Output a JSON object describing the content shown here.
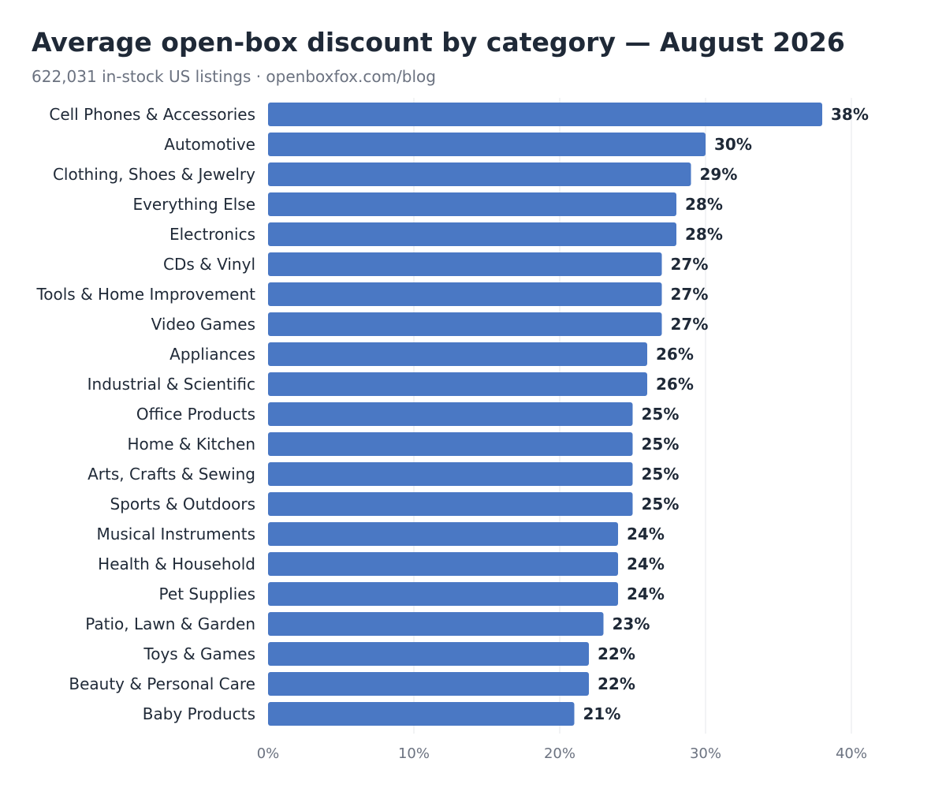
{
  "title": "Average open-box discount by category — August 2026",
  "subtitle": "622,031 in-stock US listings · openboxfox.com/blog",
  "colors": {
    "bar": "#4a78c4",
    "title": "#1f2937",
    "subtitle": "#6b7280",
    "category_label": "#1f2937",
    "value_label": "#1f2937",
    "tick_label": "#6b7280",
    "grid": "#e5e7eb"
  },
  "chart_data": {
    "type": "bar",
    "orientation": "horizontal",
    "title": "Average open-box discount by category — August 2026",
    "subtitle": "622,031 in-stock US listings · openboxfox.com/blog",
    "xlabel": "",
    "ylabel": "",
    "xlim": [
      0,
      40
    ],
    "xticks": [
      0,
      10,
      20,
      30,
      40
    ],
    "xtick_labels": [
      "0%",
      "10%",
      "20%",
      "30%",
      "40%"
    ],
    "grid": "vertical",
    "legend": "none",
    "categories": [
      "Cell Phones & Accessories",
      "Automotive",
      "Clothing, Shoes & Jewelry",
      "Everything Else",
      "Electronics",
      "CDs & Vinyl",
      "Tools & Home Improvement",
      "Video Games",
      "Appliances",
      "Industrial & Scientific",
      "Office Products",
      "Home & Kitchen",
      "Arts, Crafts & Sewing",
      "Sports & Outdoors",
      "Musical Instruments",
      "Health & Household",
      "Pet Supplies",
      "Patio, Lawn & Garden",
      "Toys & Games",
      "Beauty & Personal Care",
      "Baby Products"
    ],
    "values": [
      38,
      30,
      29,
      28,
      28,
      27,
      27,
      27,
      26,
      26,
      25,
      25,
      25,
      25,
      24,
      24,
      24,
      23,
      22,
      22,
      21
    ],
    "value_labels": [
      "38%",
      "30%",
      "29%",
      "28%",
      "28%",
      "27%",
      "27%",
      "27%",
      "26%",
      "26%",
      "25%",
      "25%",
      "25%",
      "25%",
      "24%",
      "24%",
      "24%",
      "23%",
      "22%",
      "22%",
      "21%"
    ]
  }
}
